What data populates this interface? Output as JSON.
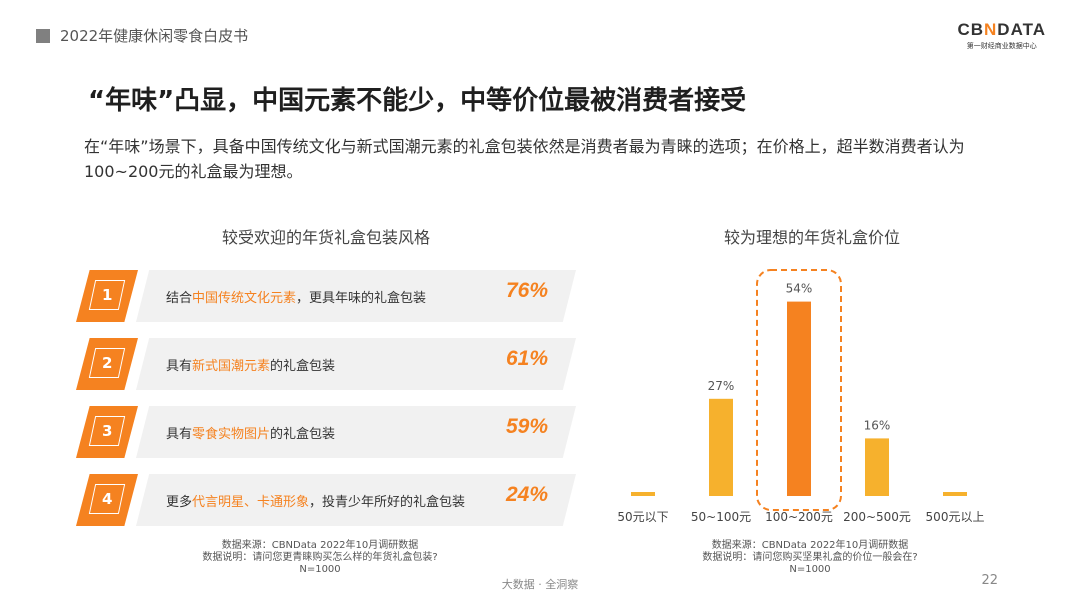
{
  "header": {
    "report_title": "2022年健康休闲零食白皮书"
  },
  "logo": {
    "brand_prefix": "CB",
    "brand_mark": "N",
    "brand_suffix": "DATA",
    "tagline": "第一财经商业数据中心"
  },
  "page_title": "“年味”凸显，中国元素不能少，中等价位最被消费者接受",
  "description": "在“年味”场景下，具备中国传统文化与新式国潮元素的礼盒包装依然是消费者最为青睐的选项；在价格上，超半数消费者认为100~200元的礼盒最为理想。",
  "left_panel": {
    "title": "较受欢迎的年货礼盒包装风格",
    "rows": [
      {
        "rank": "1",
        "pre": "结合",
        "highlight": "中国传统文化元素",
        "post": "，更具年味的礼盒包装",
        "pct": "76%"
      },
      {
        "rank": "2",
        "pre": "具有",
        "highlight": "新式国潮元素",
        "post": "的礼盒包装",
        "pct": "61%"
      },
      {
        "rank": "3",
        "pre": "具有",
        "highlight": "零食实物图片",
        "post": "的礼盒包装",
        "pct": "59%"
      },
      {
        "rank": "4",
        "pre": "更多",
        "highlight": "代言明星、卡通形象",
        "post": "，投青少年所好的礼盒包装",
        "pct": "24%"
      }
    ],
    "note": {
      "source": "数据来源：CBNData 2022年10月调研数据",
      "explain": "数据说明：请问您更青睐购买怎么样的年货礼盒包装?",
      "n": "N=1000"
    }
  },
  "right_panel": {
    "title": "较为理想的年货礼盒价位",
    "note": {
      "source": "数据来源：CBNData 2022年10月调研数据",
      "explain": "数据说明：请问您购买坚果礼盒的价位一般会在?",
      "n": "N=1000"
    }
  },
  "chart_data": {
    "type": "bar",
    "title": "较为理想的年货礼盒价位",
    "categories": [
      "50元以下",
      "50~100元",
      "100~200元",
      "200~500元",
      "500元以上"
    ],
    "values": [
      1,
      27,
      54,
      16,
      1
    ],
    "data_labels": [
      "",
      "27%",
      "54%",
      "16%",
      ""
    ],
    "highlight_index": 2,
    "ylim": [
      0,
      60
    ],
    "colors": {
      "bar": "#f6b12d",
      "highlight": "#f58220",
      "frame": "#f58220"
    }
  },
  "footer": {
    "text": "大数据 · 全洞察",
    "page": "22"
  }
}
